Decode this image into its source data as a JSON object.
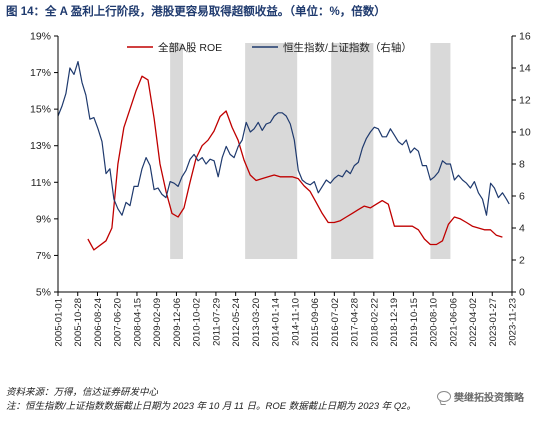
{
  "title": "图 14：全 A 盈利上行阶段，港股更容易取得超额收益。（单位：%，倍数）",
  "source": "资料来源：万得，信达证券研发中心",
  "note": "注：恒生指数/上证指数数据截止日期为 2023 年 10 月 11 日。ROE 数据截止日期为 2023 年 Q2。",
  "watermark": "樊继拓投资策略",
  "colors": {
    "roe": "#c00000",
    "ratio": "#1f3a6e",
    "shade": "#d9d9d9",
    "title": "#1f3a6e"
  },
  "chart_data": {
    "type": "line",
    "title": "",
    "x_ticks": [
      "2005-01-01",
      "2005-10-28",
      "2006-08-24",
      "2007-06-20",
      "2008-04-15",
      "2009-02-09",
      "2009-12-06",
      "2010-10-02",
      "2011-07-29",
      "2012-05-24",
      "2013-03-20",
      "2014-01-14",
      "2014-11-10",
      "2015-09-06",
      "2016-07-02",
      "2017-04-28",
      "2018-02-22",
      "2018-12-19",
      "2019-10-15",
      "2020-08-10",
      "2021-06-06",
      "2022-04-02",
      "2023-01-27",
      "2023-11-23"
    ],
    "x_range": [
      "2005-01-01",
      "2023-11-23"
    ],
    "y_left": {
      "range": [
        5,
        19
      ],
      "ticks": [
        "5%",
        "7%",
        "9%",
        "11%",
        "13%",
        "15%",
        "17%",
        "19%"
      ]
    },
    "y_right": {
      "range": [
        0,
        16
      ],
      "ticks": [
        "0",
        "2",
        "4",
        "6",
        "8",
        "10",
        "12",
        "14",
        "16"
      ]
    },
    "grid": false,
    "legend_position": "top",
    "shaded_periods": [
      [
        "2009-09-01",
        "2010-03-15"
      ],
      [
        "2012-10-15",
        "2014-12-15"
      ],
      [
        "2016-05-15",
        "2018-02-15"
      ],
      [
        "2020-07-01",
        "2021-05-01"
      ]
    ],
    "series": [
      {
        "name": "全部A股 ROE",
        "axis": "left",
        "points": [
          [
            "2006-03-31",
            7.9
          ],
          [
            "2006-06-30",
            7.3
          ],
          [
            "2006-12-31",
            7.8
          ],
          [
            "2007-03-31",
            8.5
          ],
          [
            "2007-06-30",
            12.0
          ],
          [
            "2007-09-30",
            14.0
          ],
          [
            "2007-12-31",
            15.0
          ],
          [
            "2008-03-31",
            16.0
          ],
          [
            "2008-06-30",
            16.8
          ],
          [
            "2008-09-30",
            16.6
          ],
          [
            "2008-12-31",
            14.5
          ],
          [
            "2009-03-31",
            12.0
          ],
          [
            "2009-06-30",
            10.5
          ],
          [
            "2009-09-30",
            9.3
          ],
          [
            "2009-12-31",
            9.1
          ],
          [
            "2010-03-31",
            9.6
          ],
          [
            "2010-06-30",
            11.0
          ],
          [
            "2010-09-30",
            12.3
          ],
          [
            "2010-12-31",
            13.0
          ],
          [
            "2011-03-31",
            13.3
          ],
          [
            "2011-06-30",
            13.8
          ],
          [
            "2011-09-30",
            14.6
          ],
          [
            "2011-12-31",
            14.9
          ],
          [
            "2012-03-31",
            14.0
          ],
          [
            "2012-06-30",
            13.3
          ],
          [
            "2012-09-30",
            12.2
          ],
          [
            "2012-12-31",
            11.4
          ],
          [
            "2013-03-31",
            11.1
          ],
          [
            "2013-06-30",
            11.2
          ],
          [
            "2013-09-30",
            11.3
          ],
          [
            "2013-12-31",
            11.4
          ],
          [
            "2014-03-31",
            11.3
          ],
          [
            "2014-06-30",
            11.3
          ],
          [
            "2014-09-30",
            11.3
          ],
          [
            "2014-12-31",
            11.2
          ],
          [
            "2015-03-31",
            10.8
          ],
          [
            "2015-06-30",
            10.5
          ],
          [
            "2015-09-30",
            9.9
          ],
          [
            "2015-12-31",
            9.3
          ],
          [
            "2016-03-31",
            8.8
          ],
          [
            "2016-06-30",
            8.8
          ],
          [
            "2016-09-30",
            8.9
          ],
          [
            "2016-12-31",
            9.1
          ],
          [
            "2017-03-31",
            9.3
          ],
          [
            "2017-06-30",
            9.5
          ],
          [
            "2017-09-30",
            9.7
          ],
          [
            "2017-12-31",
            9.6
          ],
          [
            "2018-03-31",
            9.8
          ],
          [
            "2018-06-30",
            10.0
          ],
          [
            "2018-09-30",
            9.8
          ],
          [
            "2018-12-31",
            8.6
          ],
          [
            "2019-03-31",
            8.6
          ],
          [
            "2019-06-30",
            8.6
          ],
          [
            "2019-09-30",
            8.6
          ],
          [
            "2019-12-31",
            8.4
          ],
          [
            "2020-03-31",
            7.9
          ],
          [
            "2020-06-30",
            7.6
          ],
          [
            "2020-09-30",
            7.6
          ],
          [
            "2020-12-31",
            7.8
          ],
          [
            "2021-03-31",
            8.7
          ],
          [
            "2021-06-30",
            9.1
          ],
          [
            "2021-09-30",
            9.0
          ],
          [
            "2021-12-31",
            8.8
          ],
          [
            "2022-03-31",
            8.6
          ],
          [
            "2022-06-30",
            8.5
          ],
          [
            "2022-09-30",
            8.4
          ],
          [
            "2022-12-31",
            8.4
          ],
          [
            "2023-03-31",
            8.1
          ],
          [
            "2023-06-30",
            8.0
          ]
        ]
      },
      {
        "name": "恒生指数/上证指数（右轴）",
        "axis": "right",
        "points": [
          [
            "2005-01-01",
            11.0
          ],
          [
            "2005-03-01",
            11.6
          ],
          [
            "2005-05-01",
            12.4
          ],
          [
            "2005-07-01",
            14.0
          ],
          [
            "2005-09-01",
            13.6
          ],
          [
            "2005-11-01",
            14.4
          ],
          [
            "2006-01-01",
            13.1
          ],
          [
            "2006-03-01",
            12.3
          ],
          [
            "2006-05-01",
            10.8
          ],
          [
            "2006-07-01",
            10.9
          ],
          [
            "2006-09-01",
            10.2
          ],
          [
            "2006-11-01",
            9.4
          ],
          [
            "2007-01-01",
            7.4
          ],
          [
            "2007-03-01",
            7.7
          ],
          [
            "2007-05-01",
            5.8
          ],
          [
            "2007-07-01",
            5.2
          ],
          [
            "2007-09-01",
            4.8
          ],
          [
            "2007-11-01",
            5.6
          ],
          [
            "2008-01-01",
            5.4
          ],
          [
            "2008-03-01",
            6.6
          ],
          [
            "2008-05-01",
            6.6
          ],
          [
            "2008-07-01",
            7.7
          ],
          [
            "2008-09-01",
            8.4
          ],
          [
            "2008-11-01",
            7.9
          ],
          [
            "2009-01-01",
            6.4
          ],
          [
            "2009-03-01",
            6.5
          ],
          [
            "2009-05-01",
            6.1
          ],
          [
            "2009-07-01",
            5.9
          ],
          [
            "2009-09-01",
            6.9
          ],
          [
            "2009-11-01",
            6.8
          ],
          [
            "2010-01-01",
            6.6
          ],
          [
            "2010-03-01",
            7.2
          ],
          [
            "2010-05-01",
            7.6
          ],
          [
            "2010-07-01",
            8.3
          ],
          [
            "2010-09-01",
            8.6
          ],
          [
            "2010-11-01",
            8.2
          ],
          [
            "2011-01-01",
            8.4
          ],
          [
            "2011-03-01",
            8.0
          ],
          [
            "2011-05-01",
            8.3
          ],
          [
            "2011-07-01",
            8.2
          ],
          [
            "2011-09-01",
            7.2
          ],
          [
            "2011-11-01",
            8.4
          ],
          [
            "2012-01-01",
            9.1
          ],
          [
            "2012-03-01",
            8.6
          ],
          [
            "2012-05-01",
            8.4
          ],
          [
            "2012-07-01",
            9.1
          ],
          [
            "2012-09-01",
            9.5
          ],
          [
            "2012-11-01",
            10.6
          ],
          [
            "2013-01-01",
            10.0
          ],
          [
            "2013-03-01",
            10.2
          ],
          [
            "2013-05-01",
            10.6
          ],
          [
            "2013-07-01",
            10.1
          ],
          [
            "2013-09-01",
            10.5
          ],
          [
            "2013-11-01",
            10.6
          ],
          [
            "2014-01-01",
            11.0
          ],
          [
            "2014-03-01",
            11.2
          ],
          [
            "2014-05-01",
            11.2
          ],
          [
            "2014-07-01",
            11.0
          ],
          [
            "2014-09-01",
            10.5
          ],
          [
            "2014-11-01",
            9.5
          ],
          [
            "2015-01-01",
            7.6
          ],
          [
            "2015-03-01",
            7.0
          ],
          [
            "2015-05-01",
            6.8
          ],
          [
            "2015-07-01",
            6.7
          ],
          [
            "2015-09-01",
            6.9
          ],
          [
            "2015-11-01",
            6.2
          ],
          [
            "2016-01-01",
            6.6
          ],
          [
            "2016-03-01",
            7.0
          ],
          [
            "2016-05-01",
            6.8
          ],
          [
            "2016-07-01",
            7.1
          ],
          [
            "2016-09-01",
            7.3
          ],
          [
            "2016-11-01",
            7.2
          ],
          [
            "2017-01-01",
            7.6
          ],
          [
            "2017-03-01",
            7.4
          ],
          [
            "2017-05-01",
            7.9
          ],
          [
            "2017-07-01",
            8.1
          ],
          [
            "2017-09-01",
            9.0
          ],
          [
            "2017-11-01",
            9.6
          ],
          [
            "2018-01-01",
            10.0
          ],
          [
            "2018-03-01",
            10.3
          ],
          [
            "2018-05-01",
            10.2
          ],
          [
            "2018-07-01",
            9.7
          ],
          [
            "2018-09-01",
            9.7
          ],
          [
            "2018-11-01",
            10.2
          ],
          [
            "2019-01-01",
            9.8
          ],
          [
            "2019-03-01",
            9.4
          ],
          [
            "2019-05-01",
            9.2
          ],
          [
            "2019-07-01",
            9.5
          ],
          [
            "2019-09-01",
            8.7
          ],
          [
            "2019-11-01",
            9.0
          ],
          [
            "2020-01-01",
            8.8
          ],
          [
            "2020-03-01",
            7.9
          ],
          [
            "2020-05-01",
            7.9
          ],
          [
            "2020-07-01",
            7.0
          ],
          [
            "2020-09-01",
            7.2
          ],
          [
            "2020-11-01",
            7.5
          ],
          [
            "2021-01-01",
            8.2
          ],
          [
            "2021-03-01",
            8.0
          ],
          [
            "2021-05-01",
            8.0
          ],
          [
            "2021-07-01",
            7.0
          ],
          [
            "2021-09-01",
            7.3
          ],
          [
            "2021-11-01",
            7.0
          ],
          [
            "2022-01-01",
            6.8
          ],
          [
            "2022-03-01",
            6.5
          ],
          [
            "2022-05-01",
            6.9
          ],
          [
            "2022-07-01",
            6.2
          ],
          [
            "2022-09-01",
            5.8
          ],
          [
            "2022-11-01",
            4.8
          ],
          [
            "2023-01-01",
            6.8
          ],
          [
            "2023-03-01",
            6.5
          ],
          [
            "2023-05-01",
            5.9
          ],
          [
            "2023-07-01",
            6.2
          ],
          [
            "2023-09-01",
            5.8
          ],
          [
            "2023-10-11",
            5.5
          ]
        ]
      }
    ]
  }
}
